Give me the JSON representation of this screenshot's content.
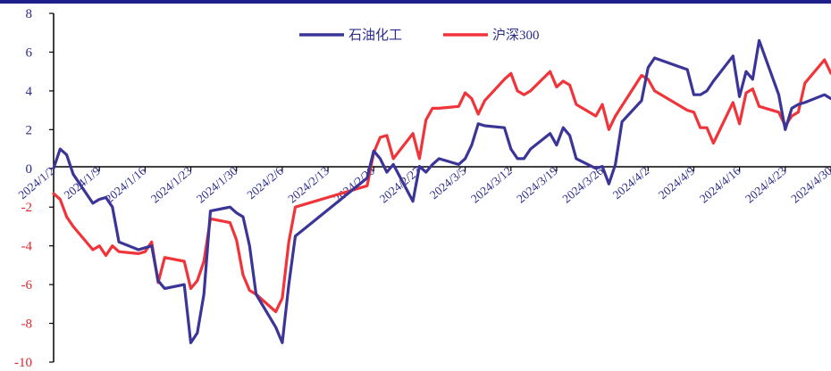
{
  "chart_data": {
    "type": "line",
    "ylim": [
      -10,
      8
    ],
    "y_ticks": [
      8,
      6,
      4,
      2,
      0,
      -2,
      -4,
      -6,
      -8,
      -10
    ],
    "x_ticks": [
      "2024/1/2",
      "2024/1/9",
      "2024/1/16",
      "2024/1/23",
      "2024/1/30",
      "2024/2/6",
      "2024/2/13",
      "2024/2/20",
      "2024/2/27",
      "2024/3/5",
      "2024/3/12",
      "2024/3/19",
      "2024/3/26",
      "2024/4/2",
      "2024/4/9",
      "2024/4/16",
      "2024/4/23",
      "2024/4/30"
    ],
    "legend_position": "top",
    "grid": false,
    "series": [
      {
        "name": "石油化工",
        "color": "#3b3598",
        "points": [
          [
            "2024-01-02",
            0.0
          ],
          [
            "2024-01-03",
            1.0
          ],
          [
            "2024-01-04",
            0.7
          ],
          [
            "2024-01-05",
            -0.3
          ],
          [
            "2024-01-08",
            -1.8
          ],
          [
            "2024-01-09",
            -1.6
          ],
          [
            "2024-01-10",
            -1.5
          ],
          [
            "2024-01-11",
            -2.0
          ],
          [
            "2024-01-12",
            -3.8
          ],
          [
            "2024-01-15",
            -4.2
          ],
          [
            "2024-01-16",
            -4.1
          ],
          [
            "2024-01-17",
            -4.0
          ],
          [
            "2024-01-18",
            -5.8
          ],
          [
            "2024-01-19",
            -6.2
          ],
          [
            "2024-01-22",
            -6.0
          ],
          [
            "2024-01-23",
            -9.0
          ],
          [
            "2024-01-24",
            -8.5
          ],
          [
            "2024-01-25",
            -6.5
          ],
          [
            "2024-01-26",
            -2.2
          ],
          [
            "2024-01-29",
            -2.0
          ],
          [
            "2024-01-30",
            -2.3
          ],
          [
            "2024-01-31",
            -2.5
          ],
          [
            "2024-02-01",
            -4.0
          ],
          [
            "2024-02-02",
            -6.5
          ],
          [
            "2024-02-05",
            -8.2
          ],
          [
            "2024-02-06",
            -9.0
          ],
          [
            "2024-02-07",
            -6.0
          ],
          [
            "2024-02-08",
            -3.5
          ],
          [
            "2024-02-19",
            -0.5
          ],
          [
            "2024-02-20",
            0.9
          ],
          [
            "2024-02-21",
            0.5
          ],
          [
            "2024-02-22",
            -0.2
          ],
          [
            "2024-02-23",
            0.2
          ],
          [
            "2024-02-26",
            -1.7
          ],
          [
            "2024-02-27",
            0.1
          ],
          [
            "2024-02-28",
            -0.2
          ],
          [
            "2024-02-29",
            0.2
          ],
          [
            "2024-03-01",
            0.5
          ],
          [
            "2024-03-04",
            0.2
          ],
          [
            "2024-03-05",
            0.5
          ],
          [
            "2024-03-06",
            1.2
          ],
          [
            "2024-03-07",
            2.3
          ],
          [
            "2024-03-08",
            2.2
          ],
          [
            "2024-03-11",
            2.1
          ],
          [
            "2024-03-12",
            1.0
          ],
          [
            "2024-03-13",
            0.5
          ],
          [
            "2024-03-14",
            0.5
          ],
          [
            "2024-03-15",
            1.0
          ],
          [
            "2024-03-18",
            1.8
          ],
          [
            "2024-03-19",
            1.2
          ],
          [
            "2024-03-20",
            2.1
          ],
          [
            "2024-03-21",
            1.7
          ],
          [
            "2024-03-22",
            0.5
          ],
          [
            "2024-03-25",
            0.0
          ],
          [
            "2024-03-26",
            0.1
          ],
          [
            "2024-03-27",
            -0.8
          ],
          [
            "2024-03-28",
            0.2
          ],
          [
            "2024-03-29",
            2.4
          ],
          [
            "2024-04-01",
            3.5
          ],
          [
            "2024-04-02",
            5.2
          ],
          [
            "2024-04-03",
            5.7
          ],
          [
            "2024-04-08",
            5.1
          ],
          [
            "2024-04-09",
            3.8
          ],
          [
            "2024-04-10",
            3.8
          ],
          [
            "2024-04-11",
            4.0
          ],
          [
            "2024-04-12",
            4.5
          ],
          [
            "2024-04-15",
            5.8
          ],
          [
            "2024-04-16",
            3.7
          ],
          [
            "2024-04-17",
            5.0
          ],
          [
            "2024-04-18",
            4.6
          ],
          [
            "2024-04-19",
            6.6
          ],
          [
            "2024-04-22",
            3.8
          ],
          [
            "2024-04-23",
            2.0
          ],
          [
            "2024-04-24",
            3.1
          ],
          [
            "2024-04-25",
            3.3
          ],
          [
            "2024-04-26",
            3.4
          ],
          [
            "2024-04-29",
            3.8
          ],
          [
            "2024-04-30",
            3.6
          ]
        ]
      },
      {
        "name": "沪深300",
        "color": "#f0343a",
        "points": [
          [
            "2024-01-02",
            -1.3
          ],
          [
            "2024-01-03",
            -1.6
          ],
          [
            "2024-01-04",
            -2.5
          ],
          [
            "2024-01-05",
            -3.0
          ],
          [
            "2024-01-08",
            -4.2
          ],
          [
            "2024-01-09",
            -4.0
          ],
          [
            "2024-01-10",
            -4.5
          ],
          [
            "2024-01-11",
            -4.0
          ],
          [
            "2024-01-12",
            -4.3
          ],
          [
            "2024-01-15",
            -4.4
          ],
          [
            "2024-01-16",
            -4.3
          ],
          [
            "2024-01-17",
            -3.8
          ],
          [
            "2024-01-18",
            -5.9
          ],
          [
            "2024-01-19",
            -4.6
          ],
          [
            "2024-01-22",
            -4.8
          ],
          [
            "2024-01-23",
            -6.2
          ],
          [
            "2024-01-24",
            -5.8
          ],
          [
            "2024-01-25",
            -4.8
          ],
          [
            "2024-01-26",
            -2.6
          ],
          [
            "2024-01-29",
            -2.8
          ],
          [
            "2024-01-30",
            -3.7
          ],
          [
            "2024-01-31",
            -5.5
          ],
          [
            "2024-02-01",
            -6.3
          ],
          [
            "2024-02-02",
            -6.5
          ],
          [
            "2024-02-05",
            -7.4
          ],
          [
            "2024-02-06",
            -6.7
          ],
          [
            "2024-02-07",
            -3.8
          ],
          [
            "2024-02-08",
            -2.0
          ],
          [
            "2024-02-19",
            -0.9
          ],
          [
            "2024-02-20",
            0.8
          ],
          [
            "2024-02-21",
            1.6
          ],
          [
            "2024-02-22",
            1.7
          ],
          [
            "2024-02-23",
            0.5
          ],
          [
            "2024-02-26",
            1.8
          ],
          [
            "2024-02-27",
            0.5
          ],
          [
            "2024-02-28",
            2.5
          ],
          [
            "2024-02-29",
            3.1
          ],
          [
            "2024-03-01",
            3.1
          ],
          [
            "2024-03-04",
            3.2
          ],
          [
            "2024-03-05",
            3.9
          ],
          [
            "2024-03-06",
            3.6
          ],
          [
            "2024-03-07",
            2.8
          ],
          [
            "2024-03-08",
            3.5
          ],
          [
            "2024-03-11",
            4.6
          ],
          [
            "2024-03-12",
            4.9
          ],
          [
            "2024-03-13",
            4.0
          ],
          [
            "2024-03-14",
            3.8
          ],
          [
            "2024-03-15",
            4.0
          ],
          [
            "2024-03-18",
            5.0
          ],
          [
            "2024-03-19",
            4.2
          ],
          [
            "2024-03-20",
            4.5
          ],
          [
            "2024-03-21",
            4.3
          ],
          [
            "2024-03-22",
            3.3
          ],
          [
            "2024-03-25",
            2.7
          ],
          [
            "2024-03-26",
            3.3
          ],
          [
            "2024-03-27",
            2.0
          ],
          [
            "2024-03-28",
            2.7
          ],
          [
            "2024-04-01",
            4.8
          ],
          [
            "2024-04-02",
            4.6
          ],
          [
            "2024-04-03",
            4.0
          ],
          [
            "2024-04-08",
            3.0
          ],
          [
            "2024-04-09",
            2.9
          ],
          [
            "2024-04-10",
            2.1
          ],
          [
            "2024-04-11",
            2.1
          ],
          [
            "2024-04-12",
            1.3
          ],
          [
            "2024-04-15",
            3.4
          ],
          [
            "2024-04-16",
            2.3
          ],
          [
            "2024-04-17",
            3.9
          ],
          [
            "2024-04-18",
            4.1
          ],
          [
            "2024-04-19",
            3.2
          ],
          [
            "2024-04-22",
            2.9
          ],
          [
            "2024-04-23",
            2.2
          ],
          [
            "2024-04-24",
            2.7
          ],
          [
            "2024-04-25",
            2.9
          ],
          [
            "2024-04-26",
            4.4
          ],
          [
            "2024-04-29",
            5.6
          ],
          [
            "2024-04-30",
            4.9
          ]
        ]
      }
    ]
  }
}
